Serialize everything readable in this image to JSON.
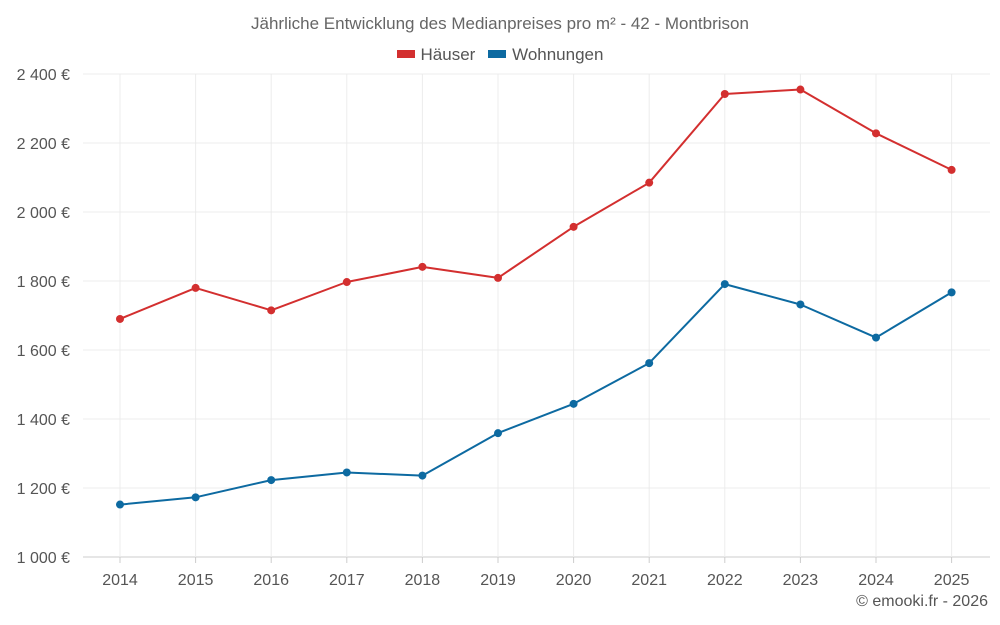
{
  "chart_data": {
    "type": "line",
    "title": "Jährliche Entwicklung des Medianpreises pro m² - 42 - Montbrison",
    "categories": [
      "2014",
      "2015",
      "2016",
      "2017",
      "2018",
      "2019",
      "2020",
      "2021",
      "2022",
      "2023",
      "2024",
      "2025"
    ],
    "series": [
      {
        "name": "Häuser",
        "color": "#d32f2f",
        "values": [
          1690,
          1780,
          1715,
          1797,
          1841,
          1809,
          1957,
          2085,
          2342,
          2355,
          2228,
          2122
        ]
      },
      {
        "name": "Wohnungen",
        "color": "#0d6aa1",
        "values": [
          1152,
          1173,
          1223,
          1245,
          1236,
          1359,
          1444,
          1562,
          1791,
          1732,
          1636,
          1767
        ]
      }
    ],
    "ylim": [
      1000,
      2400
    ],
    "yticks": [
      1000,
      1200,
      1400,
      1600,
      1800,
      2000,
      2200,
      2400
    ],
    "ytick_labels": [
      "1 000 €",
      "1 200 €",
      "1 400 €",
      "1 600 €",
      "1 800 €",
      "2 000 €",
      "2 200 €",
      "2 400 €"
    ],
    "xlabel": "",
    "ylabel": "",
    "grid": true,
    "legend_position": "top-center"
  },
  "footer": {
    "copyright": "© emooki.fr - 2026"
  }
}
